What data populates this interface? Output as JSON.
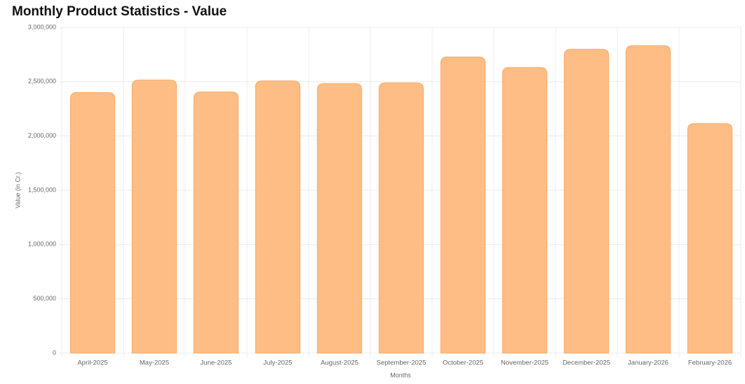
{
  "chart_data": {
    "type": "bar",
    "title": "Monthly Product Statistics - Value",
    "x_label": "Months",
    "y_label": "Value (in Cr.)",
    "categories": [
      "April-2025",
      "May-2025",
      "June-2025",
      "July-2025",
      "August-2025",
      "September-2025",
      "October-2025",
      "November-2025",
      "December-2025",
      "January-2026",
      "February-2026"
    ],
    "values": [
      2400000,
      2515000,
      2405000,
      2508000,
      2483000,
      2489000,
      2728000,
      2631000,
      2799000,
      2832000,
      2114000
    ],
    "color": "#fdbd84",
    "ylim": [
      0,
      3000000
    ],
    "yticks": [
      0,
      {
        "value": 500000,
        "label": "500,000"
      },
      {
        "value": 1000000,
        "label": "1,000,000"
      },
      {
        "value": 1500000,
        "label": "1,500,000"
      },
      {
        "value": 2000000,
        "label": "2,000,000"
      },
      {
        "value": 2500000,
        "label": "2,500,000"
      },
      {
        "value": 3000000,
        "label": "3,000,000"
      }
    ],
    "grid": true
  }
}
